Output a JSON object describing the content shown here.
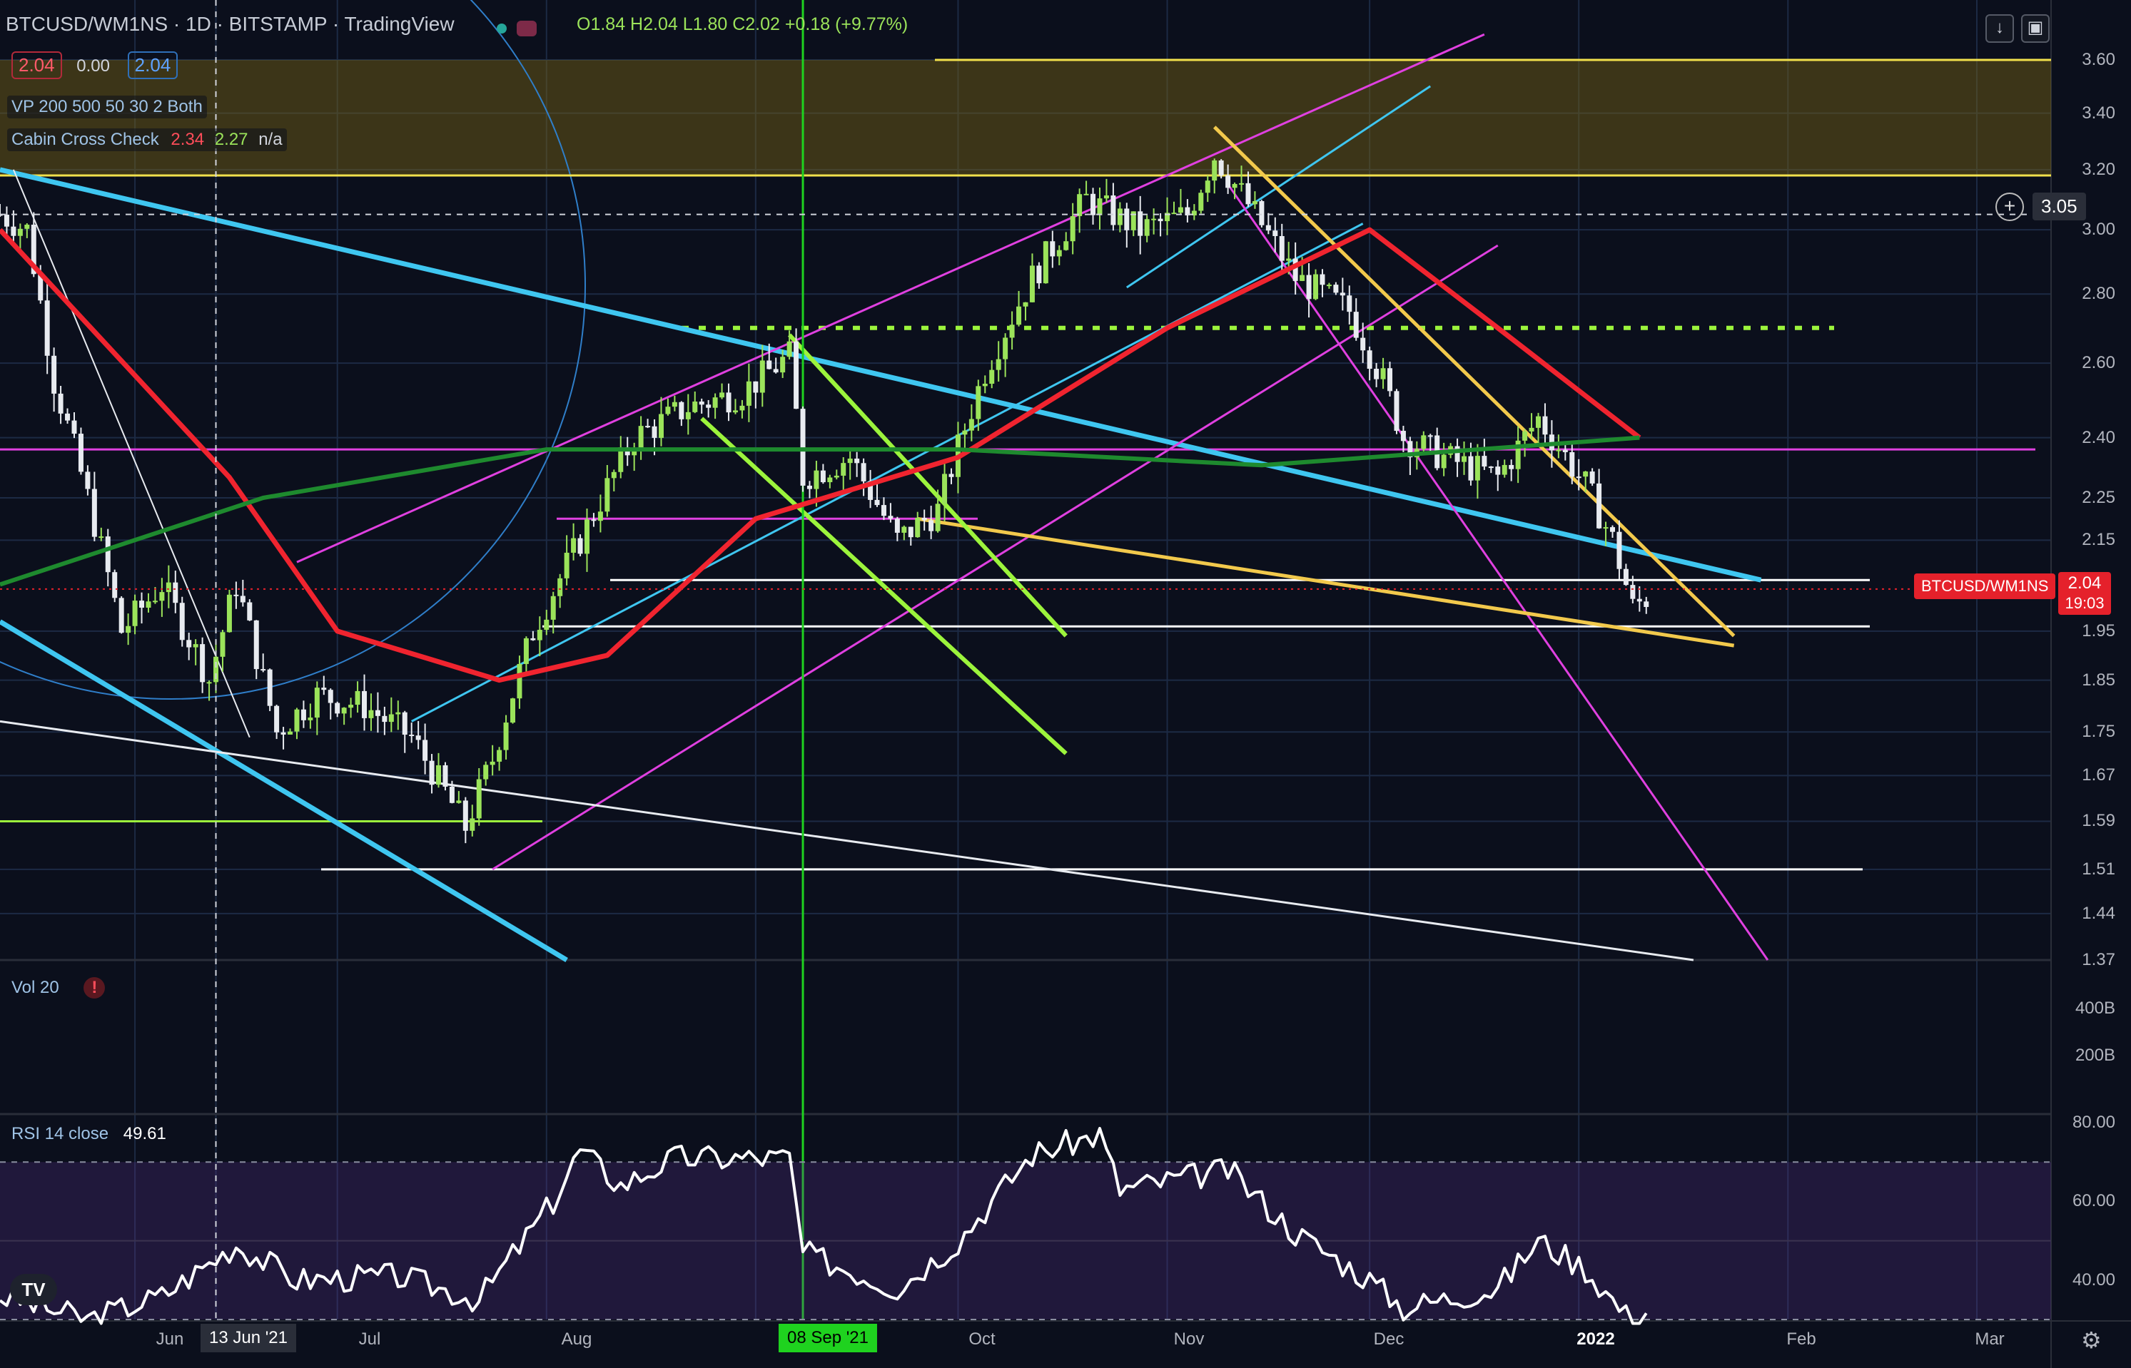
{
  "header": {
    "symbol_line": "BTCUSD/WM1NS · 1D · BITSTAMP · TradingView",
    "ohlc": "O1.84  H2.04  L1.80  C2.02  +0.18 (+9.77%)"
  },
  "legend": {
    "price_pill_1": "2.04",
    "price_plain": "0.00",
    "price_pill_2": "2.04",
    "vp": "VP 200 500 50 30 2 Both",
    "indicator_name": "Cabin Cross Check",
    "indicator_v1": "2.34",
    "indicator_v2": "2.27",
    "indicator_v3": "n/a",
    "volume": "Vol 20",
    "rsi_name": "RSI 14 close",
    "rsi_value": "49.61"
  },
  "crosshair_label": "3.05",
  "price_badge": {
    "symbol": "BTCUSD/WM1NS",
    "value": "2.04",
    "countdown": "19:03"
  },
  "date_labels": {
    "jun": "Jun",
    "jun13": "13 Jun '21",
    "jul": "Jul",
    "aug": "Aug",
    "sep8": "08 Sep '21",
    "oct": "Oct",
    "nov": "Nov",
    "dec": "Dec",
    "y2022": "2022",
    "feb": "Feb",
    "mar": "Mar"
  },
  "rsi_axis_labels": [
    "80.00",
    "60.00",
    "40.00"
  ],
  "volume_axis_labels": [
    "400B",
    "200B"
  ],
  "colors": {
    "bg": "#0b0f1c",
    "up": "#9be35a",
    "down": "#e8ebf0",
    "ema_red": "#f0242f",
    "sma_green": "#1e8a2e",
    "cyan": "#3fc6f0",
    "magenta": "#e040e0",
    "yellow": "#f2c94c",
    "lime": "#9cf43c",
    "rsi_line": "#ffffff"
  },
  "chart_data": {
    "type": "candlestick",
    "title": "BTCUSD/WM1NS · 1D · BITSTAMP",
    "y_scale": "log",
    "ylim": [
      1.37,
      3.65
    ],
    "xlim": [
      "2021-05-12",
      "2022-03-12"
    ],
    "y_ticks": [
      3.6,
      3.4,
      3.2,
      3.0,
      2.8,
      2.6,
      2.4,
      2.25,
      2.15,
      1.95,
      1.85,
      1.75,
      1.67,
      1.59,
      1.51,
      1.44,
      1.37
    ],
    "price_path": [
      [
        "2021-05-12",
        3.05
      ],
      [
        "2021-05-16",
        3.0
      ],
      [
        "2021-05-20",
        2.55
      ],
      [
        "2021-05-25",
        2.25
      ],
      [
        "2021-05-30",
        1.95
      ],
      [
        "2021-06-05",
        2.05
      ],
      [
        "2021-06-12",
        1.85
      ],
      [
        "2021-06-16",
        2.05
      ],
      [
        "2021-06-22",
        1.75
      ],
      [
        "2021-06-28",
        1.82
      ],
      [
        "2021-07-05",
        1.8
      ],
      [
        "2021-07-12",
        1.74
      ],
      [
        "2021-07-20",
        1.58
      ],
      [
        "2021-07-24",
        1.7
      ],
      [
        "2021-07-30",
        1.95
      ],
      [
        "2021-08-06",
        2.15
      ],
      [
        "2021-08-14",
        2.4
      ],
      [
        "2021-08-22",
        2.48
      ],
      [
        "2021-08-30",
        2.52
      ],
      [
        "2021-09-06",
        2.62
      ],
      [
        "2021-09-08",
        2.3
      ],
      [
        "2021-09-15",
        2.35
      ],
      [
        "2021-09-22",
        2.15
      ],
      [
        "2021-09-28",
        2.22
      ],
      [
        "2021-10-05",
        2.58
      ],
      [
        "2021-10-12",
        2.85
      ],
      [
        "2021-10-20",
        3.1
      ],
      [
        "2021-10-28",
        3.0
      ],
      [
        "2021-11-04",
        3.05
      ],
      [
        "2021-11-08",
        3.25
      ],
      [
        "2021-11-14",
        3.05
      ],
      [
        "2021-11-20",
        2.85
      ],
      [
        "2021-11-28",
        2.75
      ],
      [
        "2021-12-03",
        2.55
      ],
      [
        "2021-12-06",
        2.4
      ],
      [
        "2021-12-12",
        2.35
      ],
      [
        "2021-12-20",
        2.3
      ],
      [
        "2021-12-26",
        2.45
      ],
      [
        "2022-01-02",
        2.28
      ],
      [
        "2022-01-06",
        2.15
      ],
      [
        "2022-01-09",
        2.0
      ],
      [
        "2022-01-11",
        2.02
      ]
    ],
    "overlays": [
      {
        "name": "EMA (red)",
        "values": [
          [
            "2021-05-12",
            3.0
          ],
          [
            "2021-06-15",
            2.3
          ],
          [
            "2021-07-01",
            1.95
          ],
          [
            "2021-07-25",
            1.85
          ],
          [
            "2021-08-10",
            1.9
          ],
          [
            "2021-09-01",
            2.2
          ],
          [
            "2021-10-01",
            2.35
          ],
          [
            "2021-11-01",
            2.7
          ],
          [
            "2021-12-01",
            3.0
          ],
          [
            "2021-12-20",
            2.7
          ],
          [
            "2022-01-10",
            2.4
          ]
        ]
      },
      {
        "name": "SMA (green)",
        "values": [
          [
            "2021-05-12",
            2.05
          ],
          [
            "2021-06-20",
            2.25
          ],
          [
            "2021-08-01",
            2.37
          ],
          [
            "2021-10-01",
            2.37
          ],
          [
            "2021-11-15",
            2.33
          ],
          [
            "2022-01-10",
            2.4
          ]
        ]
      }
    ],
    "horizontal_levels": [
      3.6,
      3.18,
      2.7,
      2.37,
      2.2,
      2.06,
      1.96,
      1.59,
      1.51
    ],
    "volume_ticks": [
      "400B",
      "200B"
    ],
    "rsi": {
      "ylim": [
        30,
        80
      ],
      "bands": [
        70,
        30
      ],
      "values": [
        [
          "2021-05-12",
          36
        ],
        [
          "2021-05-25",
          30
        ],
        [
          "2021-06-05",
          36
        ],
        [
          "2021-06-16",
          49
        ],
        [
          "2021-06-25",
          40
        ],
        [
          "2021-07-10",
          41
        ],
        [
          "2021-07-22",
          35
        ],
        [
          "2021-08-02",
          60
        ],
        [
          "2021-08-06",
          73
        ],
        [
          "2021-08-12",
          64
        ],
        [
          "2021-08-20",
          71
        ],
        [
          "2021-09-06",
          71
        ],
        [
          "2021-09-08",
          47
        ],
        [
          "2021-09-22",
          38
        ],
        [
          "2021-10-01",
          50
        ],
        [
          "2021-10-12",
          72
        ],
        [
          "2021-10-22",
          77
        ],
        [
          "2021-10-25",
          63
        ],
        [
          "2021-11-10",
          68
        ],
        [
          "2021-11-20",
          52
        ],
        [
          "2021-12-01",
          40
        ],
        [
          "2021-12-06",
          33
        ],
        [
          "2021-12-20",
          38
        ],
        [
          "2021-12-26",
          50
        ],
        [
          "2022-01-02",
          43
        ],
        [
          "2022-01-08",
          31
        ],
        [
          "2022-01-11",
          32
        ]
      ]
    }
  }
}
